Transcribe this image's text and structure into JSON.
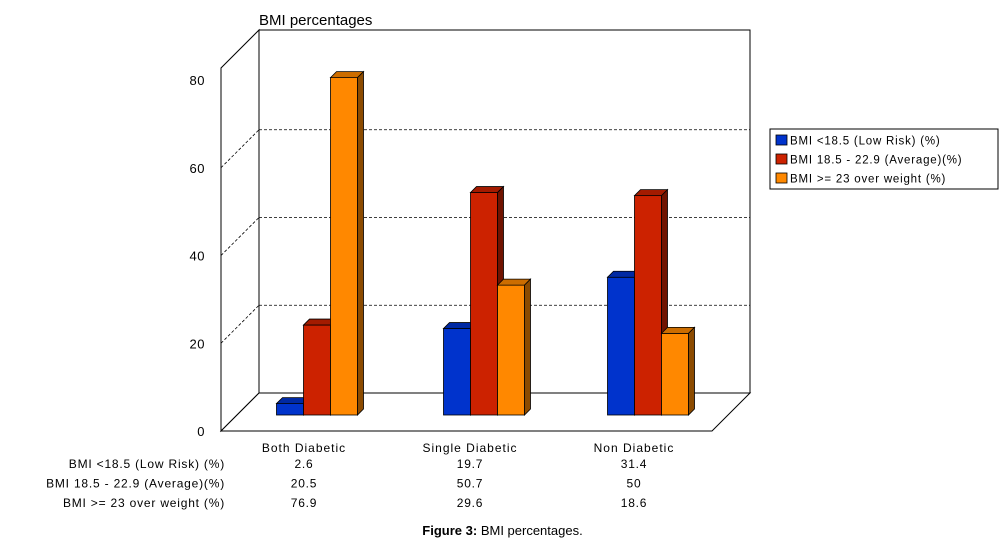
{
  "chart_data": {
    "type": "bar",
    "title": "BMI percentages",
    "categories": [
      "Both Diabetic",
      "Single Diabetic",
      "Non Diabetic"
    ],
    "series": [
      {
        "name": "BMI <18.5 (Low Risk) (%)",
        "values": [
          2.6,
          19.7,
          31.4
        ],
        "labels": [
          "2.6",
          "19.7",
          "31.4"
        ],
        "color": "#0033cc"
      },
      {
        "name": "BMI 18.5 - 22.9 (Average)(%)",
        "values": [
          20.5,
          50.7,
          50
        ],
        "labels": [
          "20.5",
          "50.7",
          "50"
        ],
        "color": "#cc2200"
      },
      {
        "name": "BMI >= 23 over weight (%)",
        "values": [
          76.9,
          29.6,
          18.6
        ],
        "labels": [
          "76.9",
          "29.6",
          "18.6"
        ],
        "color": "#ff8800"
      }
    ],
    "yticks": [
      "0",
      "20",
      "40",
      "60",
      "80"
    ],
    "ylim": [
      0,
      80
    ],
    "legend_position": "right",
    "grid": "dashed horizontal on back wall",
    "style": "3d-clustered-column",
    "data_table": true
  },
  "caption": {
    "label": "Figure 3:",
    "text": "BMI percentages."
  }
}
